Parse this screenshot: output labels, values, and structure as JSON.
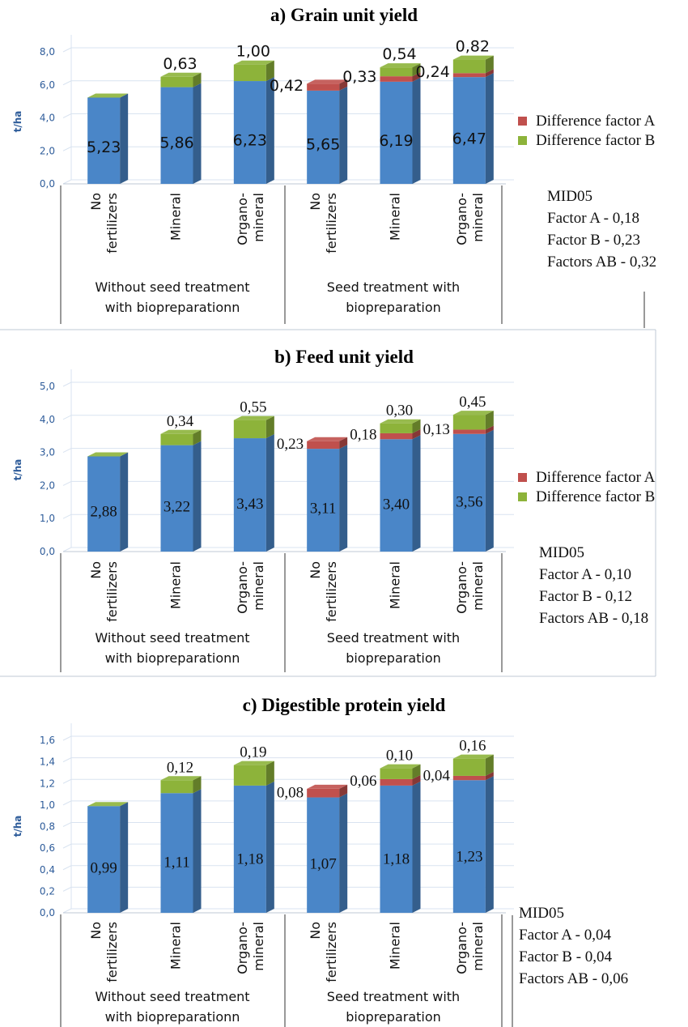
{
  "chart_data": [
    {
      "type": "bar",
      "stacked": true,
      "title": "a) Grain unit yield",
      "ylabel": "t/ha",
      "ylim": [
        0,
        8
      ],
      "yticks": [
        "0,0",
        "2,0",
        "4,0",
        "6,0",
        "8,0"
      ],
      "categories": [
        "No fertilizers",
        "Mineral",
        "Organo-mineral",
        "No fertilizers",
        "Mineral",
        "Organo-mineral"
      ],
      "groups": [
        "Without seed treatment with biopreparationn",
        "Seed treatment   with biopreparation"
      ],
      "base_values": [
        5.23,
        5.86,
        6.23,
        5.65,
        6.19,
        6.47
      ],
      "base_labels": [
        "5,23",
        "5,86",
        "6,23",
        "5,65",
        "6,19",
        "6,47"
      ],
      "series": [
        {
          "name": "Difference factor A",
          "values": [
            0,
            0,
            0,
            0.42,
            0.33,
            0.24
          ],
          "labels": [
            "",
            "",
            "",
            "0,42",
            "0,33",
            "0,24"
          ]
        },
        {
          "name": "Difference factor B",
          "values": [
            0,
            0.63,
            1.0,
            0,
            0.54,
            0.82
          ],
          "labels": [
            "",
            "0,63",
            "1,00",
            "",
            "0,54",
            "0,82"
          ]
        }
      ],
      "mid": [
        "MID05",
        "Factor A - 0,18",
        "Factor B - 0,23",
        "Factors AB - 0,32"
      ]
    },
    {
      "type": "bar",
      "stacked": true,
      "title": "b) Feed unit yield",
      "ylabel": "t/ha",
      "ylim": [
        0,
        5
      ],
      "yticks": [
        "0,0",
        "1,0",
        "2,0",
        "3,0",
        "4,0",
        "5,0"
      ],
      "categories": [
        "No fertilizers",
        "Mineral",
        "Organo-mineral",
        "No fertilizers",
        "Mineral",
        "Organo-mineral"
      ],
      "groups": [
        "Without seed treatment with biopreparationn",
        "Seed treatment   with biopreparation"
      ],
      "base_values": [
        2.88,
        3.22,
        3.43,
        3.11,
        3.4,
        3.56
      ],
      "base_labels": [
        "2,88",
        "3,22",
        "3,43",
        "3,11",
        "3,40",
        "3,56"
      ],
      "series": [
        {
          "name": "Difference factor A",
          "values": [
            0,
            0,
            0,
            0.23,
            0.18,
            0.13
          ],
          "labels": [
            "",
            "",
            "",
            "0,23",
            "0,18",
            "0,13"
          ]
        },
        {
          "name": "Difference factor B",
          "values": [
            0,
            0.34,
            0.55,
            0,
            0.3,
            0.45
          ],
          "labels": [
            "",
            "0,34",
            "0,55",
            "",
            "0,30",
            "0,45"
          ]
        }
      ],
      "mid": [
        "MID05",
        "Factor A - 0,10",
        "Factor B - 0,12",
        "Factors AB - 0,18"
      ]
    },
    {
      "type": "bar",
      "stacked": true,
      "title": "c) Digestible protein yield",
      "ylabel": "t/ha",
      "ylim": [
        0,
        1.6
      ],
      "yticks": [
        "0,0",
        "0,2",
        "0,4",
        "0,6",
        "0,8",
        "1,0",
        "1,2",
        "1,4",
        "1,6"
      ],
      "categories": [
        "No fertilizers",
        "Mineral",
        "Organo-mineral",
        "No fertilizers",
        "Mineral",
        "Organo-mineral"
      ],
      "groups": [
        "Without seed treatment with biopreparationn",
        "Seed treatment   with biopreparation"
      ],
      "base_values": [
        0.99,
        1.11,
        1.18,
        1.07,
        1.18,
        1.23
      ],
      "base_labels": [
        "0,99",
        "1,11",
        "1,18",
        "1,07",
        "1,18",
        "1,23"
      ],
      "series": [
        {
          "name": "Difference factor A",
          "values": [
            0,
            0,
            0,
            0.08,
            0.06,
            0.04
          ],
          "labels": [
            "",
            "",
            "",
            "0,08",
            "0,06",
            "0,04"
          ]
        },
        {
          "name": "Difference factor B",
          "values": [
            0,
            0.12,
            0.19,
            0,
            0.1,
            0.16
          ],
          "labels": [
            "",
            "0,12",
            "0,19",
            "",
            "0,10",
            "0,16"
          ]
        }
      ],
      "mid": [
        "MID05",
        "Factor A - 0,04",
        "Factor B - 0,04",
        "Factors AB - 0,06"
      ]
    }
  ],
  "colors": {
    "base": "#4a86c8",
    "factor_a": "#c0504d",
    "factor_b": "#8db33a"
  }
}
